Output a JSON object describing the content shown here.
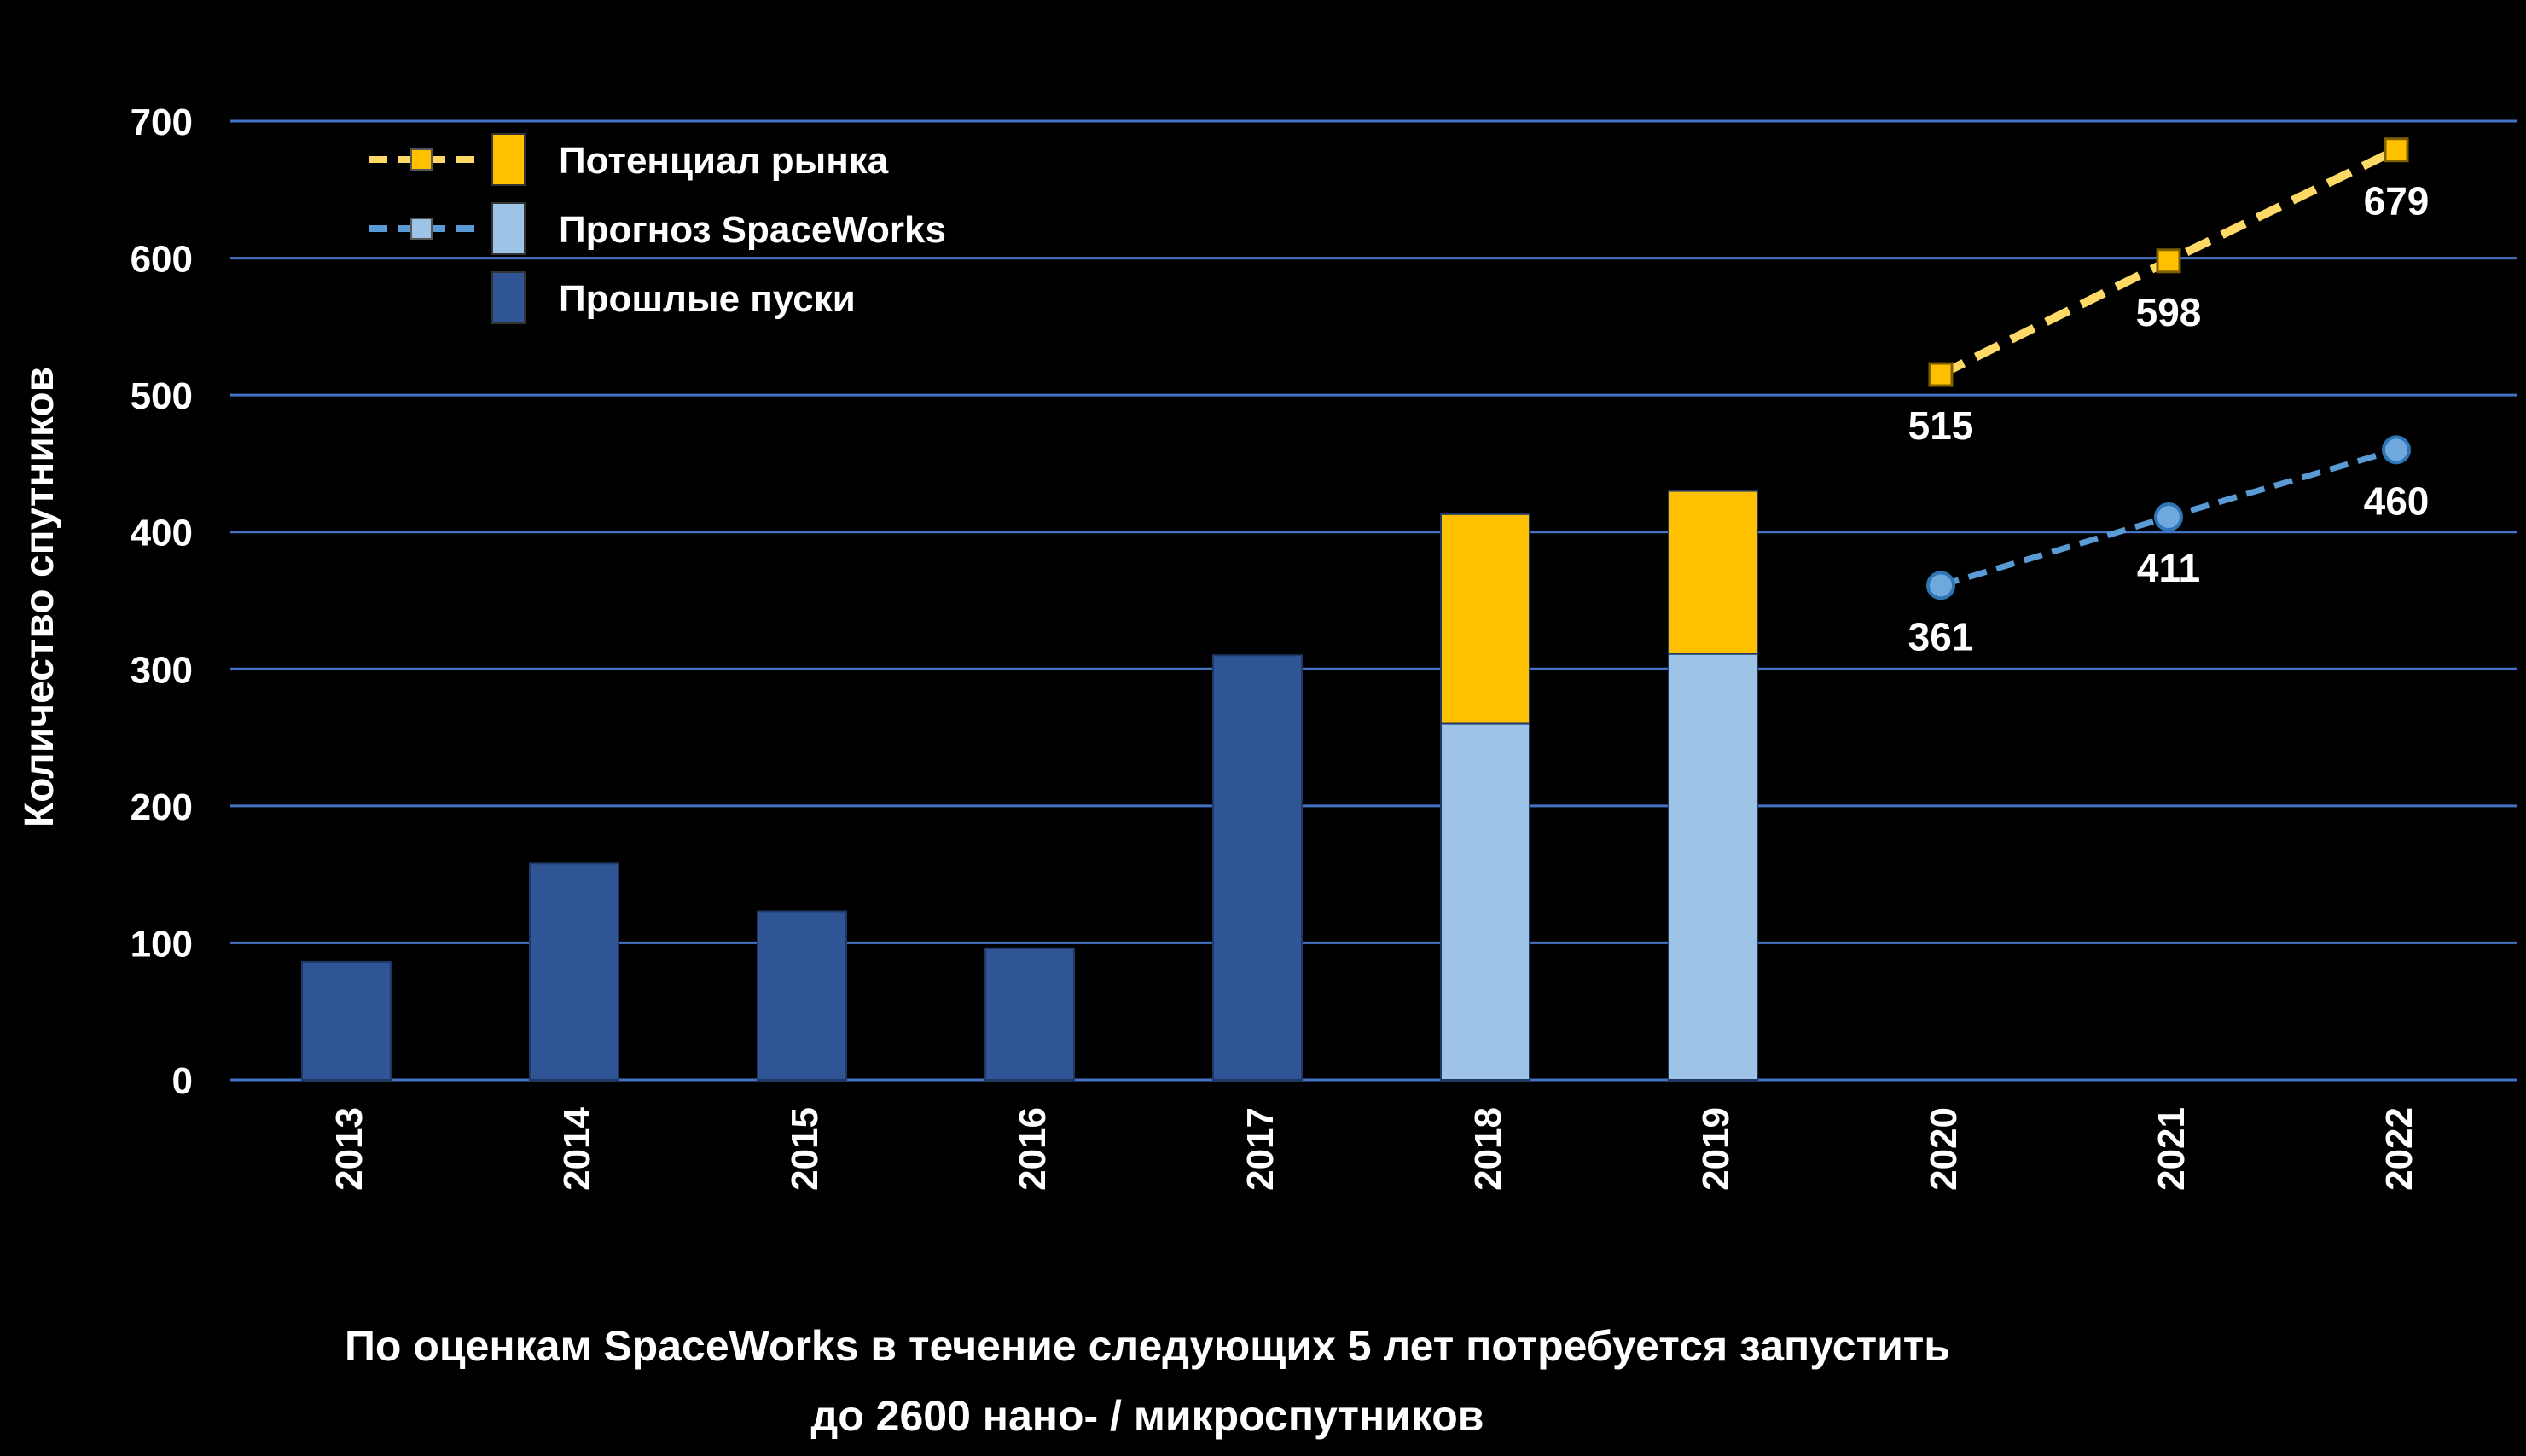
{
  "chart_data": {
    "type": "bar",
    "title": "",
    "xlabel": "",
    "ylabel": "Количество спутников",
    "ylim": [
      0,
      700
    ],
    "yticks": [
      0,
      100,
      200,
      300,
      400,
      500,
      600,
      700
    ],
    "categories": [
      "2013",
      "2014",
      "2015",
      "2016",
      "2017",
      "2018",
      "2019",
      "2020",
      "2021",
      "2022"
    ],
    "grid": true,
    "legend_position": "top-left",
    "bar_series": [
      {
        "name": "Прошлые пуски",
        "color": "#2F5597",
        "values": [
          86,
          158,
          123,
          96,
          310,
          null,
          null,
          null,
          null,
          null
        ]
      },
      {
        "name": "Прогноз SpaceWorks",
        "color": "#9DC3E6",
        "values": [
          null,
          null,
          null,
          null,
          null,
          260,
          311,
          null,
          null,
          null
        ]
      },
      {
        "name": "Потенциал рынка",
        "color": "#FFC000",
        "values": [
          null,
          null,
          null,
          null,
          null,
          153,
          119,
          null,
          null,
          null
        ]
      }
    ],
    "line_series": [
      {
        "name": "Потенциал рынка",
        "color": "#FFC000",
        "line_color": "#FFD966",
        "marker": "square",
        "x": [
          "2020",
          "2021",
          "2022"
        ],
        "y": [
          515,
          598,
          679
        ],
        "labels": [
          "515",
          "598",
          "679"
        ]
      },
      {
        "name": "Прогноз SpaceWorks",
        "color": "#6FA8DC",
        "line_color": "#5B9BD5",
        "marker": "circle",
        "x": [
          "2020",
          "2021",
          "2022"
        ],
        "y": [
          361,
          411,
          460
        ],
        "labels": [
          "361",
          "411",
          "460"
        ]
      }
    ],
    "legend": [
      {
        "label": "Потенциал рынка",
        "color": "#FFC000",
        "line_color": "#FFD966"
      },
      {
        "label": "Прогноз SpaceWorks",
        "color": "#9DC3E6",
        "line_color": "#5B9BD5"
      },
      {
        "label": "Прошлые пуски",
        "color": "#2F5597"
      }
    ],
    "footnote": [
      "По оценкам SpaceWorks в течение следующих 5 лет потребуется запустить",
      "до 2600 нано- / микроспутников"
    ],
    "colors": {
      "background": "#000000",
      "gridline": "#4472C4",
      "text": "#FFFFFF"
    }
  }
}
